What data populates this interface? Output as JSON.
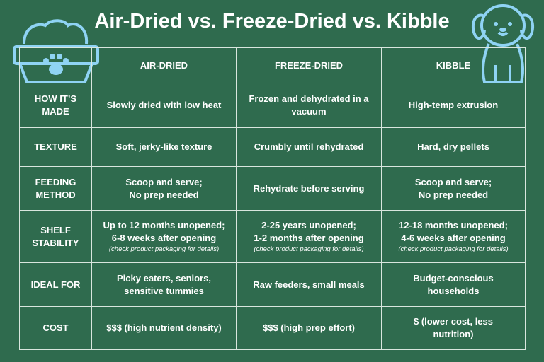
{
  "title": "Air-Dried vs. Freeze-Dried vs. Kibble",
  "table": {
    "columns": [
      "AIR-DRIED",
      "FREEZE-DRIED",
      "KIBBLE"
    ],
    "rows": [
      {
        "label": [
          "HOW IT’S",
          "MADE"
        ],
        "cells": [
          {
            "lines": [
              "Slowly dried with low heat"
            ]
          },
          {
            "lines": [
              "Frozen and dehydrated in a",
              "vacuum"
            ]
          },
          {
            "lines": [
              "High-temp extrusion"
            ]
          }
        ]
      },
      {
        "label": [
          "TEXTURE"
        ],
        "cells": [
          {
            "lines": [
              "Soft, jerky-like texture"
            ]
          },
          {
            "lines": [
              "Crumbly until rehydrated"
            ]
          },
          {
            "lines": [
              "Hard, dry pellets"
            ]
          }
        ]
      },
      {
        "label": [
          "FEEDING",
          "METHOD"
        ],
        "cells": [
          {
            "lines": [
              "Scoop and serve;",
              "No prep needed"
            ]
          },
          {
            "lines": [
              "Rehydrate before serving"
            ]
          },
          {
            "lines": [
              "Scoop and serve;",
              "No prep needed"
            ]
          }
        ]
      },
      {
        "label": [
          "SHELF",
          "STABILITY"
        ],
        "cells": [
          {
            "lines": [
              "Up to 12 months unopened;",
              "6-8 weeks after opening"
            ],
            "note": "(check product packaging for details)"
          },
          {
            "lines": [
              "2-25 years unopened;",
              "1-2 months after opening"
            ],
            "note": "(check product packaging for details)"
          },
          {
            "lines": [
              "12-18 months unopened;",
              "4-6 weeks after opening"
            ],
            "note": "(check product packaging for details)"
          }
        ]
      },
      {
        "label": [
          "IDEAL FOR"
        ],
        "cells": [
          {
            "lines": [
              "Picky eaters, seniors,",
              "sensitive tummies"
            ]
          },
          {
            "lines": [
              "Raw feeders, small meals"
            ]
          },
          {
            "lines": [
              "Budget-conscious",
              "households"
            ]
          }
        ]
      },
      {
        "label": [
          "COST"
        ],
        "cells": [
          {
            "lines": [
              "$$$ (high nutrient density)"
            ]
          },
          {
            "lines": [
              "$$$ (high prep effort)"
            ]
          },
          {
            "lines": [
              "$ (lower cost, less",
              "nutrition)"
            ]
          }
        ]
      }
    ]
  }
}
